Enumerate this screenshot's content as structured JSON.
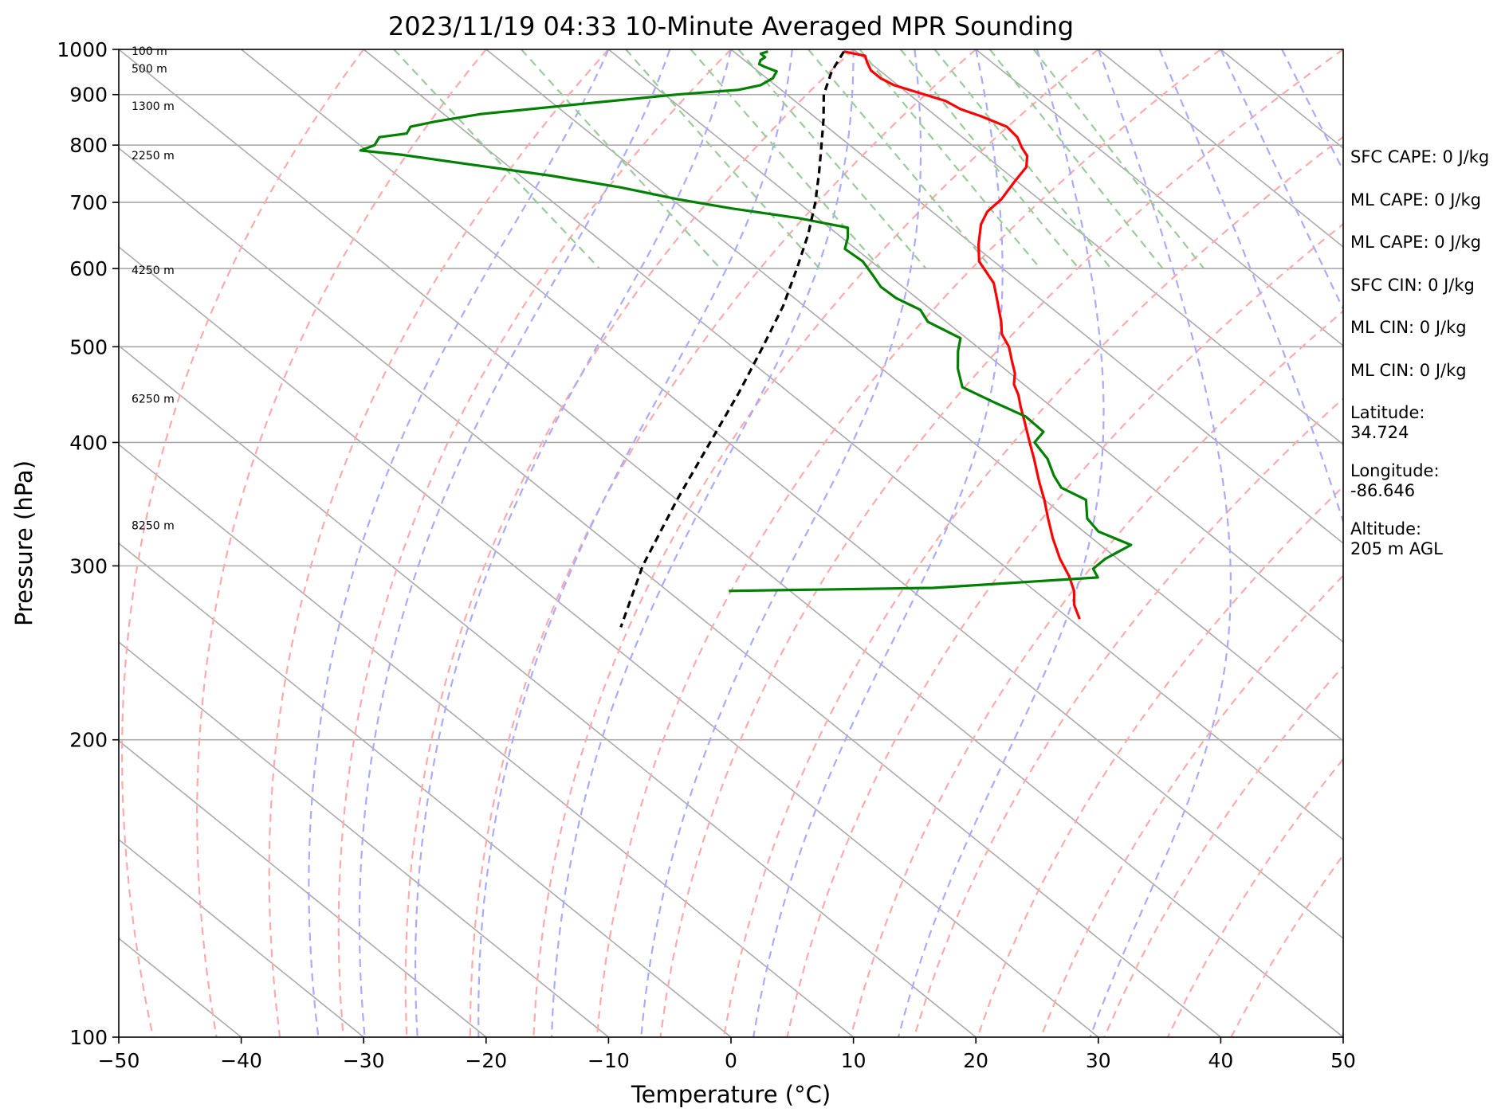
{
  "chart_data": {
    "type": "line",
    "title": "2023/11/19 04:33 10-Minute Averaged MPR Sounding",
    "xlabel": "Temperature (°C)",
    "ylabel": "Pressure (hPa)",
    "xlim": [
      -50,
      50
    ],
    "ylim": [
      1000,
      100
    ],
    "y_scale": "log",
    "x_ticks": [
      "−50",
      "−40",
      "−30",
      "−20",
      "−10",
      "0",
      "10",
      "20",
      "30",
      "40",
      "50"
    ],
    "y_ticks": [
      "100",
      "200",
      "300",
      "400",
      "500",
      "600",
      "700",
      "800",
      "900",
      "1000"
    ],
    "height_labels": [
      {
        "text": "100 m",
        "p": 994
      },
      {
        "text": "500 m",
        "p": 955
      },
      {
        "text": "1300 m",
        "p": 875
      },
      {
        "text": "2250 m",
        "p": 780
      },
      {
        "text": "4250 m",
        "p": 597
      },
      {
        "text": "6250 m",
        "p": 442
      },
      {
        "text": "8250 m",
        "p": 329
      }
    ],
    "series": [
      {
        "role": "temperature",
        "color": "#ff0000",
        "points": [
          {
            "p": 995,
            "t": 9.0
          },
          {
            "p": 985,
            "t": 10.3
          },
          {
            "p": 970,
            "t": 9.8
          },
          {
            "p": 952,
            "t": 9.3
          },
          {
            "p": 935,
            "t": 9.3
          },
          {
            "p": 920,
            "t": 9.7
          },
          {
            "p": 903,
            "t": 11.0
          },
          {
            "p": 887,
            "t": 12.3
          },
          {
            "p": 870,
            "t": 12.7
          },
          {
            "p": 855,
            "t": 13.7
          },
          {
            "p": 835,
            "t": 14.7
          },
          {
            "p": 815,
            "t": 14.5
          },
          {
            "p": 795,
            "t": 13.8
          },
          {
            "p": 780,
            "t": 13.4
          },
          {
            "p": 760,
            "t": 12.2
          },
          {
            "p": 735,
            "t": 9.8
          },
          {
            "p": 705,
            "t": 6.9
          },
          {
            "p": 685,
            "t": 4.5
          },
          {
            "p": 665,
            "t": 2.7
          },
          {
            "p": 635,
            "t": 0.5
          },
          {
            "p": 610,
            "t": -1.2
          },
          {
            "p": 580,
            "t": -2.2
          },
          {
            "p": 555,
            "t": -3.8
          },
          {
            "p": 530,
            "t": -5.5
          },
          {
            "p": 515,
            "t": -6.7
          },
          {
            "p": 500,
            "t": -7.4
          },
          {
            "p": 485,
            "t": -8.5
          },
          {
            "p": 470,
            "t": -9.6
          },
          {
            "p": 458,
            "t": -10.8
          },
          {
            "p": 447,
            "t": -11.5
          },
          {
            "p": 435,
            "t": -12.5
          },
          {
            "p": 420,
            "t": -13.7
          },
          {
            "p": 400,
            "t": -15.4
          },
          {
            "p": 385,
            "t": -16.7
          },
          {
            "p": 365,
            "t": -18.6
          },
          {
            "p": 350,
            "t": -20.0
          },
          {
            "p": 335,
            "t": -21.6
          },
          {
            "p": 320,
            "t": -23.2
          },
          {
            "p": 305,
            "t": -24.7
          },
          {
            "p": 293,
            "t": -25.7
          },
          {
            "p": 283,
            "t": -26.8
          },
          {
            "p": 274,
            "t": -28.2
          },
          {
            "p": 265,
            "t": -29.2
          }
        ]
      },
      {
        "role": "dewpoint",
        "color": "#008000",
        "points": [
          {
            "p": 995,
            "t": 2.8
          },
          {
            "p": 990,
            "t": 2.0
          },
          {
            "p": 982,
            "t": 2.0
          },
          {
            "p": 975,
            "t": 1.3
          },
          {
            "p": 966,
            "t": 0.8
          },
          {
            "p": 960,
            "t": 1.0
          },
          {
            "p": 950,
            "t": 1.5
          },
          {
            "p": 935,
            "t": 0.5
          },
          {
            "p": 920,
            "t": -1.2
          },
          {
            "p": 910,
            "t": -3.5
          },
          {
            "p": 900,
            "t": -9.0
          },
          {
            "p": 880,
            "t": -18.0
          },
          {
            "p": 860,
            "t": -27.0
          },
          {
            "p": 845,
            "t": -31.5
          },
          {
            "p": 835,
            "t": -34.0
          },
          {
            "p": 822,
            "t": -35.0
          },
          {
            "p": 815,
            "t": -37.6
          },
          {
            "p": 800,
            "t": -38.8
          },
          {
            "p": 790,
            "t": -40.5
          },
          {
            "p": 782,
            "t": -37.5
          },
          {
            "p": 765,
            "t": -33.0
          },
          {
            "p": 745,
            "t": -27.5
          },
          {
            "p": 725,
            "t": -23.0
          },
          {
            "p": 705,
            "t": -19.5
          },
          {
            "p": 690,
            "t": -16.0
          },
          {
            "p": 675,
            "t": -11.6
          },
          {
            "p": 660,
            "t": -8.5
          },
          {
            "p": 645,
            "t": -9.5
          },
          {
            "p": 628,
            "t": -10.9
          },
          {
            "p": 610,
            "t": -10.7
          },
          {
            "p": 590,
            "t": -11.3
          },
          {
            "p": 575,
            "t": -11.8
          },
          {
            "p": 560,
            "t": -11.7
          },
          {
            "p": 545,
            "t": -10.9
          },
          {
            "p": 530,
            "t": -11.5
          },
          {
            "p": 510,
            "t": -10.5
          },
          {
            "p": 495,
            "t": -12.0
          },
          {
            "p": 475,
            "t": -13.8
          },
          {
            "p": 455,
            "t": -15.3
          },
          {
            "p": 440,
            "t": -14.3
          },
          {
            "p": 425,
            "t": -13.1
          },
          {
            "p": 410,
            "t": -13.2
          },
          {
            "p": 400,
            "t": -15.0
          },
          {
            "p": 385,
            "t": -15.6
          },
          {
            "p": 370,
            "t": -16.8
          },
          {
            "p": 360,
            "t": -17.4
          },
          {
            "p": 350,
            "t": -16.6
          },
          {
            "p": 335,
            "t": -18.4
          },
          {
            "p": 325,
            "t": -18.8
          },
          {
            "p": 315,
            "t": -17.5
          },
          {
            "p": 305,
            "t": -21.0
          },
          {
            "p": 298,
            "t": -23.0
          },
          {
            "p": 292,
            "t": -23.5
          },
          {
            "p": 285,
            "t": -38.0
          },
          {
            "p": 283,
            "t": -55.0
          }
        ]
      },
      {
        "role": "parcel",
        "color": "#000000",
        "dash": true,
        "points": [
          {
            "p": 995,
            "t": 9.0
          },
          {
            "p": 950,
            "t": 6.0
          },
          {
            "p": 900,
            "t": 3.0
          },
          {
            "p": 850,
            "t": 0.5
          },
          {
            "p": 800,
            "t": -2.3
          },
          {
            "p": 750,
            "t": -5.3
          },
          {
            "p": 700,
            "t": -8.6
          },
          {
            "p": 650,
            "t": -12.4
          },
          {
            "p": 600,
            "t": -16.8
          },
          {
            "p": 550,
            "t": -21.7
          },
          {
            "p": 500,
            "t": -27.5
          },
          {
            "p": 450,
            "t": -34.0
          },
          {
            "p": 400,
            "t": -41.5
          },
          {
            "p": 350,
            "t": -50.0
          },
          {
            "p": 300,
            "t": -59.5
          },
          {
            "p": 260,
            "t": -67.5
          }
        ]
      }
    ],
    "dry_adiabats_theta_c": [
      -30,
      -20,
      -10,
      0,
      10,
      20,
      30,
      40,
      50,
      60,
      70,
      80,
      90,
      100,
      110,
      120,
      130,
      140
    ],
    "moist_adiabats_start_c": [
      -10,
      -5,
      0,
      5,
      10,
      15,
      20,
      25,
      30,
      35,
      40,
      45
    ],
    "mixing_ratios_gkg": [
      0.4,
      1,
      2,
      3,
      4,
      6,
      8,
      10,
      12,
      16,
      20
    ],
    "colors": {
      "isotherm": "#aaaaaa",
      "isobar": "#aaaaaa",
      "dry_adiabat": "#ffaaaa",
      "moist_adiabat": "#aaaaff",
      "mixing_ratio": "#99cc99"
    }
  },
  "side_info": {
    "stats": [
      "SFC CAPE: 0 J/kg",
      "ML CAPE: 0 J/kg",
      "ML CAPE: 0 J/kg",
      "SFC CIN: 0 J/kg",
      "ML CIN: 0 J/kg",
      "ML CIN: 0 J/kg"
    ],
    "latitude_label": "Latitude:",
    "latitude_value": "34.724",
    "longitude_label": "Longitude:",
    "longitude_value": "-86.646",
    "altitude_label": "Altitude:",
    "altitude_value": "205 m AGL"
  }
}
